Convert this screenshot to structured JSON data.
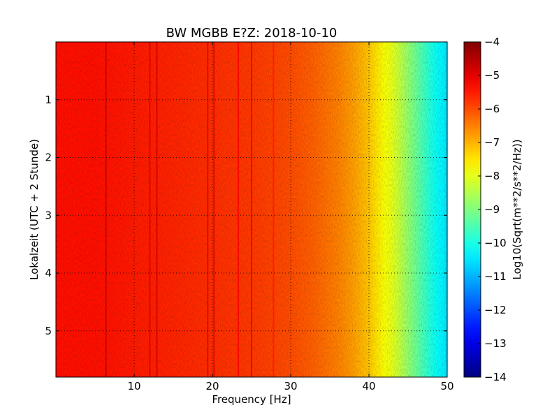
{
  "chart_data": {
    "type": "heatmap",
    "title": "BW MGBB E?Z: 2018-10-10",
    "xlabel": "Frequency [Hz]",
    "ylabel": "Lokalzeit (UTC + 2 Stunde)",
    "colorbar_label": "Log10(Sqrt(m**2/s**2/Hz))",
    "colormap": "jet",
    "xlim": [
      0,
      50
    ],
    "ylim": [
      5.8,
      0
    ],
    "y_inverted": true,
    "clim": [
      -14,
      -4
    ],
    "grid": true,
    "x_ticks": [
      10,
      20,
      30,
      40,
      50
    ],
    "x_tick_labels": [
      "10",
      "20",
      "30",
      "40",
      "50"
    ],
    "y_ticks": [
      1,
      2,
      3,
      4,
      5
    ],
    "y_tick_labels": [
      "1",
      "2",
      "3",
      "4",
      "5"
    ],
    "colorbar_ticks": [
      -4,
      -5,
      -6,
      -7,
      -8,
      -9,
      -10,
      -11,
      -12,
      -13,
      -14
    ],
    "colorbar_tick_labels": [
      "−4",
      "−5",
      "−6",
      "−7",
      "−8",
      "−9",
      "−10",
      "−11",
      "−12",
      "−13",
      "−14"
    ],
    "spectrum_profile": {
      "frequency_hz": [
        0,
        5,
        10,
        15,
        20,
        25,
        30,
        33,
        36,
        38,
        40,
        41,
        42,
        43,
        44,
        45,
        46,
        47,
        48,
        49,
        50
      ],
      "log10_amplitude": [
        -5.4,
        -5.4,
        -5.5,
        -5.6,
        -5.7,
        -5.8,
        -6.0,
        -6.2,
        -6.5,
        -6.8,
        -7.2,
        -7.5,
        -7.8,
        -8.0,
        -8.4,
        -8.8,
        -9.2,
        -9.6,
        -10.0,
        -10.3,
        -10.5
      ]
    },
    "narrowband_lines": [
      {
        "frequency_hz": 6.4,
        "log10_amplitude": -4.7
      },
      {
        "frequency_hz": 12.0,
        "log10_amplitude": -4.9
      },
      {
        "frequency_hz": 12.9,
        "log10_amplitude": -4.8
      },
      {
        "frequency_hz": 19.4,
        "log10_amplitude": -5.0
      },
      {
        "frequency_hz": 20.2,
        "log10_amplitude": -5.0
      },
      {
        "frequency_hz": 23.3,
        "log10_amplitude": -5.2
      },
      {
        "frequency_hz": 25.0,
        "log10_amplitude": -5.1
      },
      {
        "frequency_hz": 27.8,
        "log10_amplitude": -5.5
      }
    ]
  }
}
